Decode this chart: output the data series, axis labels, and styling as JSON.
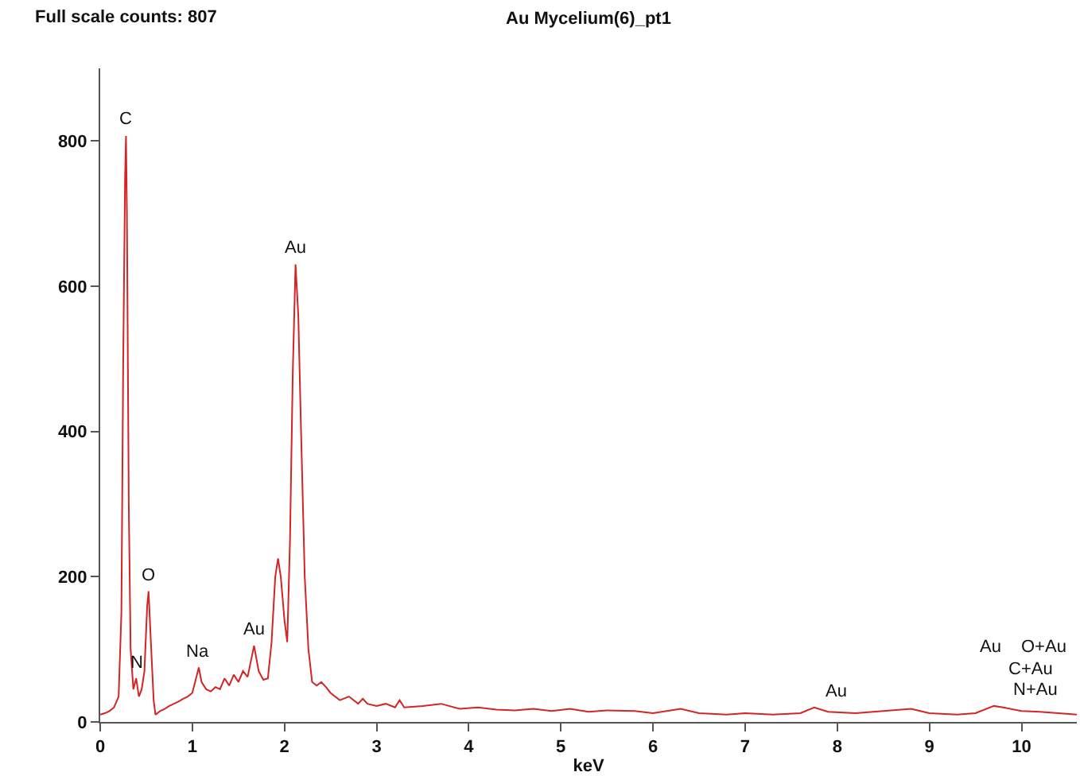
{
  "chart_data": {
    "type": "line",
    "title": "Au Mycelium(6)_pt1",
    "xlabel": "keV",
    "x": [
      0,
      0.05,
      0.1,
      0.15,
      0.2,
      0.23,
      0.25,
      0.27,
      0.28,
      0.29,
      0.31,
      0.33,
      0.36,
      0.39,
      0.42,
      0.45,
      0.48,
      0.51,
      0.525,
      0.55,
      0.58,
      0.6,
      0.65,
      0.7,
      0.75,
      0.8,
      0.85,
      0.9,
      0.95,
      1.0,
      1.04,
      1.07,
      1.1,
      1.15,
      1.2,
      1.25,
      1.3,
      1.35,
      1.4,
      1.45,
      1.5,
      1.55,
      1.6,
      1.67,
      1.72,
      1.77,
      1.82,
      1.86,
      1.9,
      1.93,
      1.96,
      2.0,
      2.03,
      2.06,
      2.09,
      2.12,
      2.15,
      2.18,
      2.22,
      2.26,
      2.3,
      2.35,
      2.4,
      2.45,
      2.5,
      2.6,
      2.7,
      2.8,
      2.85,
      2.9,
      3.0,
      3.1,
      3.2,
      3.25,
      3.3,
      3.5,
      3.7,
      3.9,
      4.1,
      4.3,
      4.5,
      4.7,
      4.9,
      5.1,
      5.3,
      5.5,
      5.8,
      6.0,
      6.3,
      6.5,
      6.8,
      7.0,
      7.3,
      7.6,
      7.75,
      7.9,
      8.2,
      8.5,
      8.8,
      9.0,
      9.3,
      9.5,
      9.7,
      9.8,
      10.0,
      10.2,
      10.4,
      10.6
    ],
    "series": [
      {
        "color": "#d42424",
        "values": [
          10,
          12,
          15,
          20,
          35,
          150,
          500,
          750,
          807,
          700,
          300,
          100,
          45,
          60,
          35,
          45,
          70,
          160,
          180,
          110,
          30,
          10,
          15,
          18,
          22,
          25,
          28,
          32,
          35,
          40,
          60,
          75,
          55,
          45,
          42,
          48,
          45,
          60,
          50,
          65,
          55,
          70,
          62,
          105,
          70,
          58,
          60,
          110,
          200,
          225,
          200,
          140,
          110,
          250,
          480,
          630,
          560,
          400,
          200,
          100,
          55,
          50,
          55,
          48,
          40,
          30,
          35,
          25,
          32,
          25,
          22,
          25,
          20,
          30,
          20,
          22,
          25,
          18,
          20,
          17,
          16,
          18,
          15,
          18,
          14,
          16,
          15,
          12,
          18,
          12,
          10,
          12,
          10,
          12,
          20,
          14,
          12,
          15,
          18,
          12,
          10,
          12,
          22,
          20,
          15,
          14,
          12,
          10
        ]
      }
    ],
    "xlim": [
      0,
      10.6
    ],
    "xticks": [
      0,
      1,
      2,
      3,
      4,
      5,
      6,
      7,
      8,
      9,
      10
    ],
    "ylim": [
      0,
      900
    ],
    "yticks": [
      0,
      200,
      400,
      600,
      800
    ],
    "grid": false,
    "marker": "none",
    "line_style": "solid",
    "annotations": [
      "Full scale counts: 807",
      {
        "text": "C",
        "x": 0.28,
        "y": 807
      },
      {
        "text": "N",
        "x": 0.39,
        "y": 60
      },
      {
        "text": "O",
        "x": 0.525,
        "y": 180
      },
      {
        "text": "Na",
        "x": 1.07,
        "y": 75
      },
      {
        "text": "Au",
        "x": 1.67,
        "y": 105
      },
      {
        "text": "Au",
        "x": 2.12,
        "y": 630
      },
      {
        "text": "Au",
        "x": 7.99,
        "y": 20
      },
      "Au",
      "O+Au",
      "C+Au",
      "N+Au"
    ]
  }
}
